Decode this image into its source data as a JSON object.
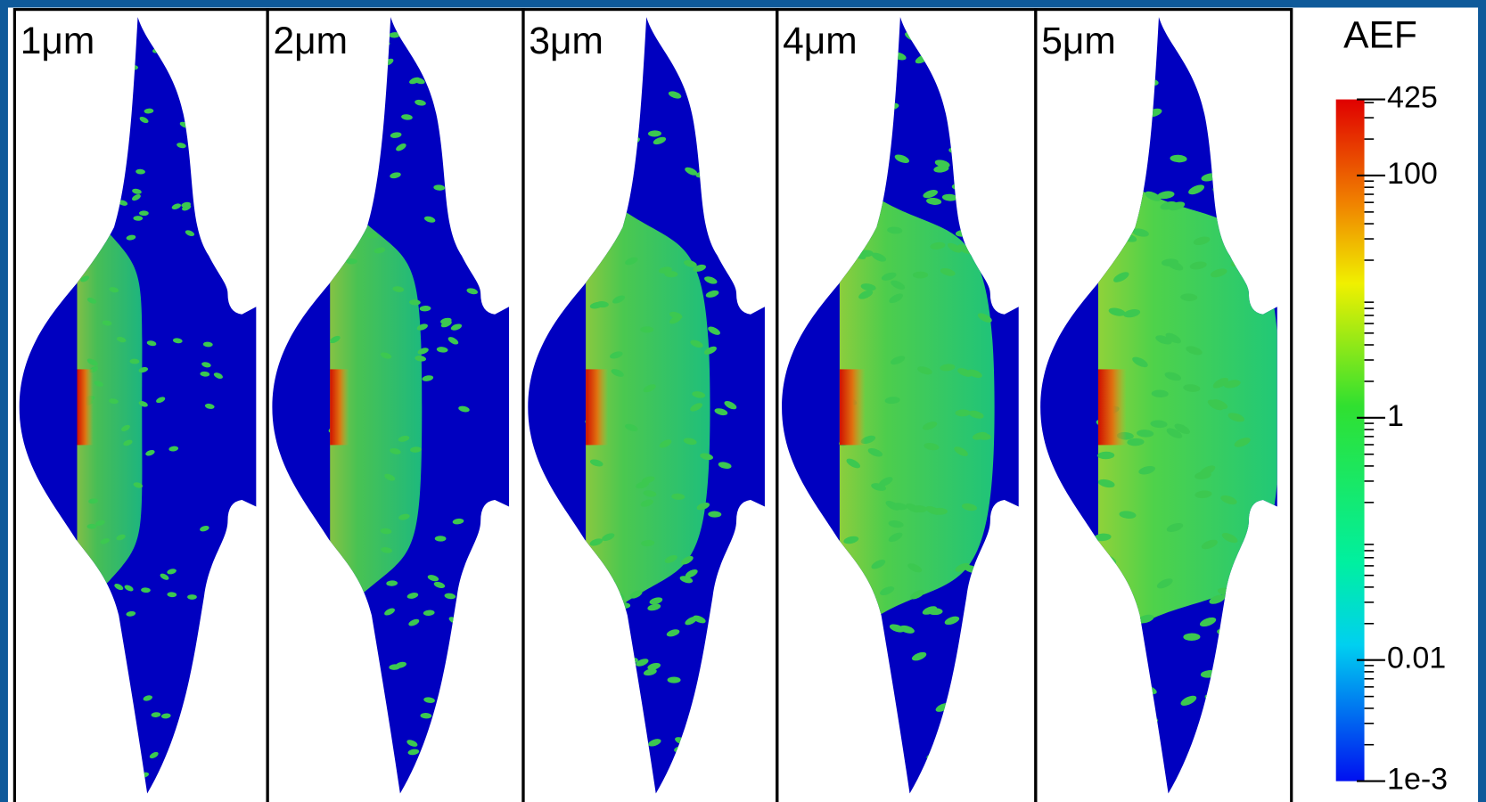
{
  "panels": [
    {
      "label": "1μm",
      "spread": 0.35
    },
    {
      "label": "2μm",
      "spread": 0.5
    },
    {
      "label": "3μm",
      "spread": 0.68
    },
    {
      "label": "4μm",
      "spread": 0.85
    },
    {
      "label": "5μm",
      "spread": 1
    }
  ],
  "colorbar": {
    "title": "AEF",
    "log": true,
    "range": [
      0.001,
      425
    ],
    "ticks": [
      425,
      100,
      1,
      0.01,
      {
        "value": 0.001,
        "label": "1e-3"
      }
    ]
  }
}
